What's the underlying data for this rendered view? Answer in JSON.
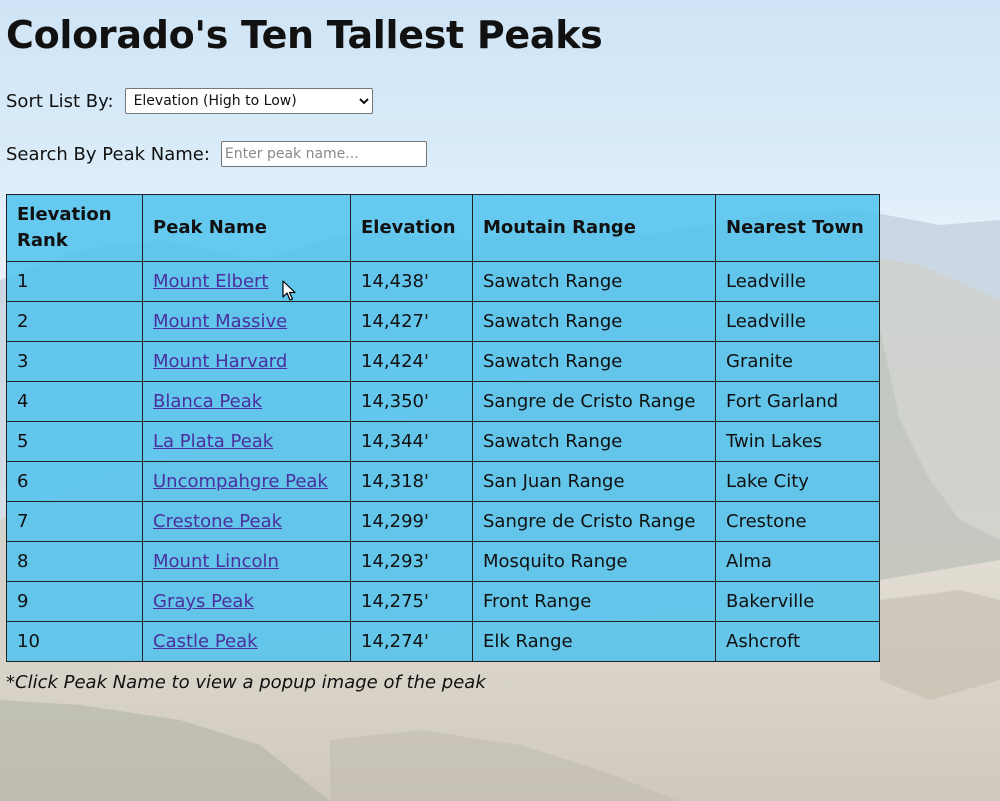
{
  "page": {
    "title": "Colorado's Ten Tallest Peaks"
  },
  "sort": {
    "label": "Sort List By:",
    "selected": "Elevation (High to Low)"
  },
  "search": {
    "label": "Search By Peak Name:",
    "placeholder": "Enter peak name...",
    "value": ""
  },
  "table": {
    "headers": [
      "Elevation Rank",
      "Peak Name",
      "Elevation",
      "Moutain Range",
      "Nearest Town"
    ],
    "rows": [
      {
        "rank": "1",
        "name": "Mount Elbert",
        "elevation": "14,438'",
        "range": "Sawatch Range",
        "town": "Leadville"
      },
      {
        "rank": "2",
        "name": "Mount Massive",
        "elevation": "14,427'",
        "range": "Sawatch Range",
        "town": "Leadville"
      },
      {
        "rank": "3",
        "name": "Mount Harvard",
        "elevation": "14,424'",
        "range": "Sawatch Range",
        "town": "Granite"
      },
      {
        "rank": "4",
        "name": "Blanca Peak",
        "elevation": "14,350'",
        "range": "Sangre de Cristo Range",
        "town": "Fort Garland"
      },
      {
        "rank": "5",
        "name": "La Plata Peak",
        "elevation": "14,344'",
        "range": "Sawatch Range",
        "town": "Twin Lakes"
      },
      {
        "rank": "6",
        "name": "Uncompahgre Peak",
        "elevation": "14,318'",
        "range": "San Juan Range",
        "town": "Lake City"
      },
      {
        "rank": "7",
        "name": "Crestone Peak",
        "elevation": "14,299'",
        "range": "Sangre de Cristo Range",
        "town": "Crestone"
      },
      {
        "rank": "8",
        "name": "Mount Lincoln",
        "elevation": "14,293'",
        "range": "Mosquito Range",
        "town": "Alma"
      },
      {
        "rank": "9",
        "name": "Grays Peak",
        "elevation": "14,275'",
        "range": "Front Range",
        "town": "Bakerville"
      },
      {
        "rank": "10",
        "name": "Castle Peak",
        "elevation": "14,274'",
        "range": "Elk Range",
        "town": "Ashcroft"
      }
    ]
  },
  "note": "*Click Peak Name to view a popup image of the peak",
  "colors": {
    "table_bg": "#50c2ee",
    "link": "#4b2f9e"
  },
  "icons": {
    "cursor": "arrow-pointer-icon"
  }
}
